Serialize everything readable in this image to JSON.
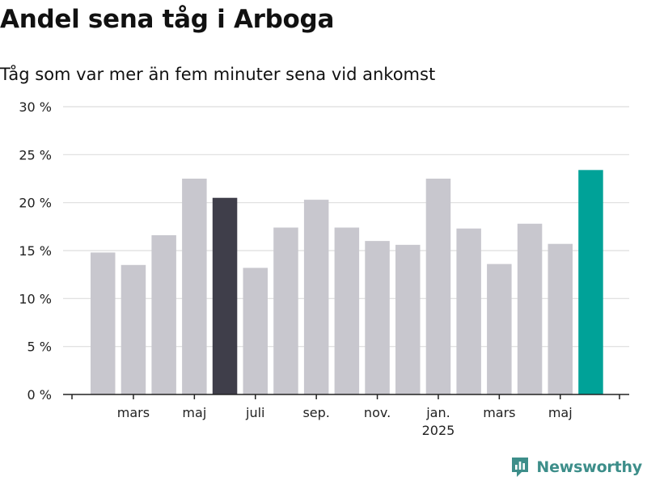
{
  "header": {
    "title": "Andel sena tåg i Arboga",
    "subtitle": "Tåg som var mer än fem minuter sena vid ankomst"
  },
  "brand": {
    "name": "Newsworthy",
    "icon": "newsworthy-logo-icon"
  },
  "colors": {
    "bar_default": "#c8c7ce",
    "bar_highlight_dark": "#3f3e4a",
    "bar_highlight_accent": "#00a298",
    "grid": "#dedede",
    "axis": "#222222",
    "brand": "#3d8e8a"
  },
  "chart_data": {
    "type": "bar",
    "title": "Andel sena tåg i Arboga",
    "subtitle": "Tåg som var mer än fem minuter sena vid ankomst",
    "xlabel": "",
    "ylabel": "",
    "ylim": [
      0,
      30
    ],
    "yticks": [
      0,
      5,
      10,
      15,
      20,
      25,
      30
    ],
    "ytick_labels": [
      "0 %",
      "5 %",
      "10 %",
      "15 %",
      "20 %",
      "25 %",
      "30 %"
    ],
    "grid": true,
    "legend": "none",
    "values": [
      14.8,
      13.5,
      16.6,
      22.5,
      20.5,
      13.2,
      17.4,
      20.3,
      17.4,
      16.0,
      15.6,
      22.5,
      17.3,
      13.6,
      17.8,
      15.7,
      23.4
    ],
    "bar_colors": [
      "default",
      "default",
      "default",
      "default",
      "dark",
      "default",
      "default",
      "default",
      "default",
      "default",
      "default",
      "default",
      "default",
      "default",
      "default",
      "default",
      "accent"
    ],
    "x_tick_labels": [
      {
        "bar": 1,
        "label": "mars"
      },
      {
        "bar": 3,
        "label": "maj"
      },
      {
        "bar": 5,
        "label": "juli"
      },
      {
        "bar": 7,
        "label": "sep."
      },
      {
        "bar": 9,
        "label": "nov."
      },
      {
        "bar": 11,
        "label": "jan.",
        "sublabel": "2025"
      },
      {
        "bar": 13,
        "label": "mars"
      },
      {
        "bar": 15,
        "label": "maj"
      }
    ]
  }
}
